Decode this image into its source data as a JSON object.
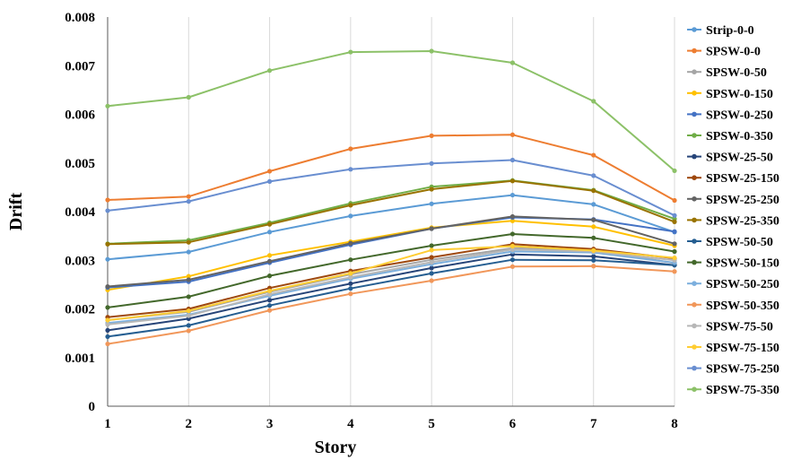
{
  "chart_data": {
    "type": "line",
    "title": "",
    "xlabel": "Story",
    "ylabel": "Drift",
    "x": [
      1,
      2,
      3,
      4,
      5,
      6,
      7,
      8
    ],
    "xlim": [
      1,
      8
    ],
    "ylim": [
      0,
      0.008
    ],
    "yticks": [
      "0",
      "0.001",
      "0.002",
      "0.003",
      "0.004",
      "0.005",
      "0.006",
      "0.007",
      "0.008"
    ],
    "xticks": [
      "1",
      "2",
      "3",
      "4",
      "5",
      "6",
      "7",
      "8"
    ],
    "grid": "vertical",
    "legend_position": "right",
    "series": [
      {
        "name": "Strip-0-0",
        "color": "#5B9BD5",
        "values": [
          0.00302,
          0.00317,
          0.00358,
          0.00391,
          0.00416,
          0.00434,
          0.00415,
          0.00358
        ]
      },
      {
        "name": "SPSW-0-0",
        "color": "#ED7D31",
        "values": [
          0.00424,
          0.00431,
          0.00483,
          0.00529,
          0.00556,
          0.00558,
          0.00516,
          0.00423
        ]
      },
      {
        "name": "SPSW-0-50",
        "color": "#A5A5A5",
        "values": [
          0.00177,
          0.00194,
          0.00235,
          0.00271,
          0.00301,
          0.00325,
          0.00321,
          0.00294
        ]
      },
      {
        "name": "SPSW-0-150",
        "color": "#FFC000",
        "values": [
          0.00239,
          0.00267,
          0.0031,
          0.00338,
          0.00367,
          0.00381,
          0.00369,
          0.0033
        ]
      },
      {
        "name": "SPSW-0-250",
        "color": "#4472C4",
        "values": [
          0.00244,
          0.00256,
          0.00295,
          0.00332,
          0.00365,
          0.00388,
          0.00384,
          0.00359
        ]
      },
      {
        "name": "SPSW-0-350",
        "color": "#70AD47",
        "values": [
          0.00334,
          0.00341,
          0.00377,
          0.00417,
          0.00451,
          0.00464,
          0.00444,
          0.00385
        ]
      },
      {
        "name": "SPSW-25-50",
        "color": "#264478",
        "values": [
          0.00156,
          0.0018,
          0.00218,
          0.00252,
          0.00284,
          0.00312,
          0.00308,
          0.0029
        ]
      },
      {
        "name": "SPSW-25-150",
        "color": "#9E480E",
        "values": [
          0.00183,
          0.002,
          0.00243,
          0.00278,
          0.00306,
          0.00333,
          0.00323,
          0.00304
        ]
      },
      {
        "name": "SPSW-25-250",
        "color": "#636363",
        "values": [
          0.00246,
          0.0026,
          0.00298,
          0.00335,
          0.00365,
          0.0039,
          0.00383,
          0.00334
        ]
      },
      {
        "name": "SPSW-25-350",
        "color": "#997300",
        "values": [
          0.00333,
          0.00337,
          0.00374,
          0.00413,
          0.00446,
          0.00463,
          0.00443,
          0.00379
        ]
      },
      {
        "name": "SPSW-50-50",
        "color": "#255E91",
        "values": [
          0.00143,
          0.00166,
          0.00207,
          0.00242,
          0.00273,
          0.00301,
          0.003,
          0.0029
        ]
      },
      {
        "name": "SPSW-50-150",
        "color": "#43682B",
        "values": [
          0.00203,
          0.00225,
          0.00268,
          0.00301,
          0.0033,
          0.00354,
          0.00346,
          0.00318
        ]
      },
      {
        "name": "SPSW-50-250",
        "color": "#7CAFDD",
        "values": [
          0.00171,
          0.00188,
          0.00227,
          0.00262,
          0.00292,
          0.00318,
          0.00316,
          0.00295
        ]
      },
      {
        "name": "SPSW-50-350",
        "color": "#F1975A",
        "values": [
          0.00128,
          0.00155,
          0.00197,
          0.00231,
          0.00258,
          0.00287,
          0.00288,
          0.00277
        ]
      },
      {
        "name": "SPSW-75-50",
        "color": "#B7B7B7",
        "values": [
          0.00168,
          0.00186,
          0.0023,
          0.00265,
          0.00296,
          0.00322,
          0.00318,
          0.003
        ]
      },
      {
        "name": "SPSW-75-150",
        "color": "#FFCD33",
        "values": [
          0.00177,
          0.00196,
          0.00237,
          0.00273,
          0.00321,
          0.00329,
          0.0032,
          0.00305
        ]
      },
      {
        "name": "SPSW-75-250",
        "color": "#698ED0",
        "values": [
          0.00402,
          0.00421,
          0.00462,
          0.00487,
          0.00499,
          0.00506,
          0.00474,
          0.00392
        ]
      },
      {
        "name": "SPSW-75-350",
        "color": "#8CC168",
        "values": [
          0.00617,
          0.00635,
          0.0069,
          0.00728,
          0.0073,
          0.00706,
          0.00627,
          0.00484
        ]
      }
    ]
  }
}
